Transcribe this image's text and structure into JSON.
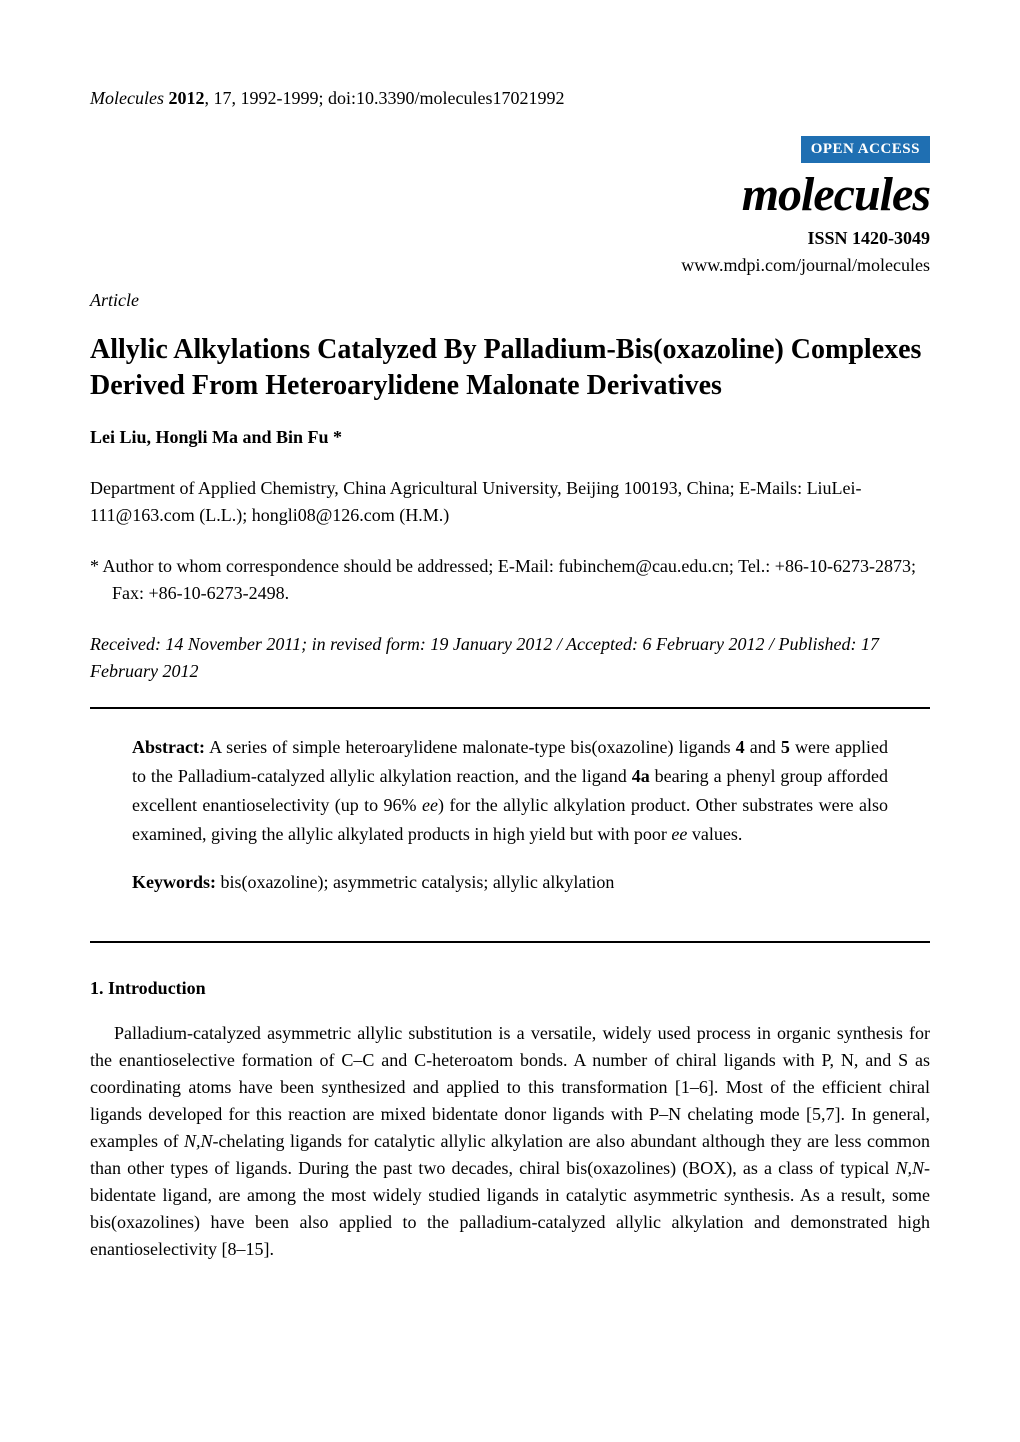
{
  "header": {
    "citation_prefix": "Molecules",
    "citation_bold_year": "2012",
    "citation_rest": ", 17, 1992-1999; doi:10.3390/molecules17021992",
    "open_access_label": "OPEN ACCESS",
    "journal_name": "molecules",
    "issn": "ISSN 1420-3049",
    "journal_url": "www.mdpi.com/journal/molecules"
  },
  "article": {
    "type": "Article",
    "title": "Allylic Alkylations Catalyzed By Palladium-Bis(oxazoline) Complexes Derived From Heteroarylidene Malonate Derivatives",
    "authors": "Lei Liu, Hongli Ma and Bin Fu *",
    "affiliation": "Department of Applied Chemistry, China Agricultural University, Beijing 100193, China; E-Mails: LiuLei-111@163.com (L.L.); hongli08@126.com (H.M.)",
    "correspondence": "*  Author to whom correspondence should be addressed; E-Mail: fubinchem@cau.edu.cn; Tel.: +86-10-6273-2873; Fax: +86-10-6273-2498.",
    "dates": "Received: 14 November 2011; in revised form: 19 January 2012 / Accepted: 6 February 2012 / Published: 17 February 2012"
  },
  "abstract": {
    "label": "Abstract:",
    "text_part1": " A series of simple heteroarylidene malonate-type bis(oxazoline) ligands ",
    "bold4": "4",
    "text_and": " and ",
    "bold5": "5",
    "text_part2": " were applied to the Palladium-catalyzed allylic alkylation reaction, and the ligand ",
    "bold4a": "4a",
    "text_part3": " bearing a phenyl group afforded excellent enantioselectivity (up to 96% ",
    "ital_ee1": "ee",
    "text_part4": ") for the allylic alkylation product. Other substrates were also examined, giving the allylic alkylated products in high yield but with poor ",
    "ital_ee2": "ee",
    "text_part5": " values."
  },
  "keywords": {
    "label": "Keywords:",
    "text": " bis(oxazoline); asymmetric catalysis; allylic alkylation"
  },
  "introduction": {
    "heading": "1. Introduction",
    "text_part1": "Palladium-catalyzed asymmetric allylic substitution is a versatile, widely used process in organic synthesis for the enantioselective formation of C–C and C-heteroatom bonds. A number of chiral ligands with P, N, and S as coordinating atoms have been synthesized and applied to this transformation [1–6]. Most of the efficient chiral ligands developed for this reaction are mixed bidentate donor ligands with P–N chelating mode [5,7]. In general, examples of ",
    "ital_NN1": "N,N",
    "text_part2": "-chelating ligands for catalytic allylic alkylation are also abundant although they are less common than other types of ligands. During the past two decades, chiral bis(oxazolines) (BOX), as a class of typical ",
    "ital_NN2": "N,N",
    "text_part3": "-bidentate ligand, are among the most widely studied ligands in catalytic asymmetric synthesis. As a result, some bis(oxazolines) have been also applied to the palladium-catalyzed allylic alkylation and demonstrated high enantioselectivity [8–15]."
  },
  "colors": {
    "open_access_bg": "#1f6fb2",
    "open_access_fg": "#ffffff",
    "text": "#000000",
    "background": "#ffffff",
    "divider": "#000000"
  },
  "typography": {
    "body_font": "Times New Roman",
    "body_size_pt": 12,
    "title_size_pt": 18,
    "journal_name_size_pt": 32
  }
}
